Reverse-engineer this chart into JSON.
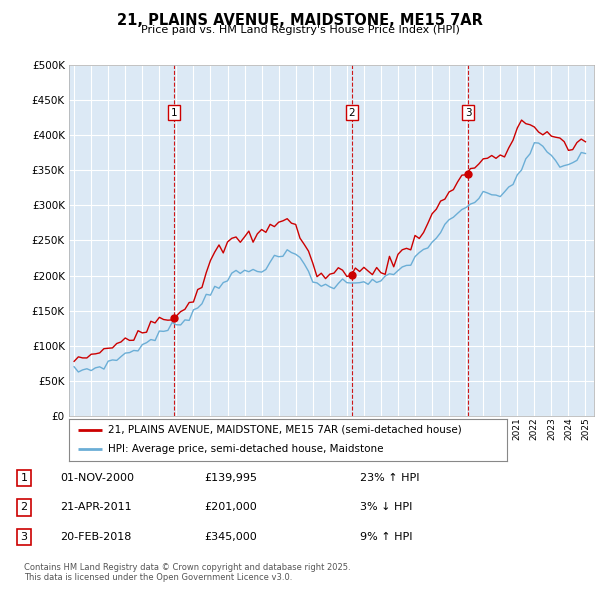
{
  "title": "21, PLAINS AVENUE, MAIDSTONE, ME15 7AR",
  "subtitle": "Price paid vs. HM Land Registry's House Price Index (HPI)",
  "legend_line1": "21, PLAINS AVENUE, MAIDSTONE, ME15 7AR (semi-detached house)",
  "legend_line2": "HPI: Average price, semi-detached house, Maidstone",
  "footer": "Contains HM Land Registry data © Crown copyright and database right 2025.\nThis data is licensed under the Open Government Licence v3.0.",
  "sales": [
    {
      "num": "1",
      "date": "01-NOV-2000",
      "price": 139995,
      "pct_str": "23% ↑ HPI",
      "year": 2000.84
    },
    {
      "num": "2",
      "date": "21-APR-2011",
      "price": 201000,
      "pct_str": "3% ↓ HPI",
      "year": 2011.3
    },
    {
      "num": "3",
      "date": "20-FEB-2018",
      "price": 345000,
      "pct_str": "9% ↑ HPI",
      "year": 2018.13
    }
  ],
  "hpi_color": "#6baed6",
  "price_color": "#cc0000",
  "plot_bg": "#dce9f5",
  "ylim": [
    0,
    500000
  ],
  "xlim_start": 1994.7,
  "xlim_end": 2025.5,
  "hpi_years": [
    1995.0,
    1995.25,
    1995.5,
    1995.75,
    1996.0,
    1996.25,
    1996.5,
    1996.75,
    1997.0,
    1997.25,
    1997.5,
    1997.75,
    1998.0,
    1998.25,
    1998.5,
    1998.75,
    1999.0,
    1999.25,
    1999.5,
    1999.75,
    2000.0,
    2000.25,
    2000.5,
    2000.75,
    2001.0,
    2001.25,
    2001.5,
    2001.75,
    2002.0,
    2002.25,
    2002.5,
    2002.75,
    2003.0,
    2003.25,
    2003.5,
    2003.75,
    2004.0,
    2004.25,
    2004.5,
    2004.75,
    2005.0,
    2005.25,
    2005.5,
    2005.75,
    2006.0,
    2006.25,
    2006.5,
    2006.75,
    2007.0,
    2007.25,
    2007.5,
    2007.75,
    2008.0,
    2008.25,
    2008.5,
    2008.75,
    2009.0,
    2009.25,
    2009.5,
    2009.75,
    2010.0,
    2010.25,
    2010.5,
    2010.75,
    2011.0,
    2011.25,
    2011.5,
    2011.75,
    2012.0,
    2012.25,
    2012.5,
    2012.75,
    2013.0,
    2013.25,
    2013.5,
    2013.75,
    2014.0,
    2014.25,
    2014.5,
    2014.75,
    2015.0,
    2015.25,
    2015.5,
    2015.75,
    2016.0,
    2016.25,
    2016.5,
    2016.75,
    2017.0,
    2017.25,
    2017.5,
    2017.75,
    2018.0,
    2018.25,
    2018.5,
    2018.75,
    2019.0,
    2019.25,
    2019.5,
    2019.75,
    2020.0,
    2020.25,
    2020.5,
    2020.75,
    2021.0,
    2021.25,
    2021.5,
    2021.75,
    2022.0,
    2022.25,
    2022.5,
    2022.75,
    2023.0,
    2023.25,
    2023.5,
    2023.75,
    2024.0,
    2024.25,
    2024.5,
    2024.75,
    2025.0
  ],
  "hpi_values": [
    65000,
    64000,
    65500,
    66000,
    67000,
    68500,
    70000,
    72000,
    75000,
    78000,
    81000,
    85000,
    88000,
    91000,
    94000,
    97000,
    100000,
    104000,
    108000,
    112000,
    116000,
    120000,
    123000,
    127000,
    130000,
    134000,
    138000,
    143000,
    148000,
    155000,
    162000,
    170000,
    177000,
    183000,
    188000,
    192000,
    196000,
    199000,
    202000,
    204000,
    205000,
    206000,
    207000,
    208000,
    210000,
    214000,
    218000,
    222000,
    226000,
    229000,
    231000,
    232000,
    230000,
    225000,
    217000,
    207000,
    195000,
    188000,
    185000,
    184000,
    185000,
    187000,
    189000,
    190000,
    191000,
    192000,
    193000,
    193000,
    192000,
    191000,
    190000,
    191000,
    192000,
    195000,
    198000,
    202000,
    206000,
    210000,
    215000,
    220000,
    225000,
    230000,
    236000,
    242000,
    248000,
    255000,
    262000,
    269000,
    275000,
    281000,
    287000,
    292000,
    297000,
    302000,
    306000,
    310000,
    313000,
    315000,
    316000,
    316000,
    315000,
    318000,
    325000,
    334000,
    342000,
    352000,
    362000,
    373000,
    384000,
    390000,
    385000,
    375000,
    368000,
    362000,
    358000,
    356000,
    358000,
    362000,
    366000,
    370000,
    375000
  ],
  "red_years": [
    1995.0,
    1995.25,
    1995.5,
    1995.75,
    1996.0,
    1996.25,
    1996.5,
    1996.75,
    1997.0,
    1997.25,
    1997.5,
    1997.75,
    1998.0,
    1998.25,
    1998.5,
    1998.75,
    1999.0,
    1999.25,
    1999.5,
    1999.75,
    2000.0,
    2000.25,
    2000.5,
    2000.75,
    2001.0,
    2001.25,
    2001.5,
    2001.75,
    2002.0,
    2002.25,
    2002.5,
    2002.75,
    2003.0,
    2003.25,
    2003.5,
    2003.75,
    2004.0,
    2004.25,
    2004.5,
    2004.75,
    2005.0,
    2005.25,
    2005.5,
    2005.75,
    2006.0,
    2006.25,
    2006.5,
    2006.75,
    2007.0,
    2007.25,
    2007.5,
    2007.75,
    2008.0,
    2008.25,
    2008.5,
    2008.75,
    2009.0,
    2009.25,
    2009.5,
    2009.75,
    2010.0,
    2010.25,
    2010.5,
    2010.75,
    2011.0,
    2011.25,
    2011.5,
    2011.75,
    2012.0,
    2012.25,
    2012.5,
    2012.75,
    2013.0,
    2013.25,
    2013.5,
    2013.75,
    2014.0,
    2014.25,
    2014.5,
    2014.75,
    2015.0,
    2015.25,
    2015.5,
    2015.75,
    2016.0,
    2016.25,
    2016.5,
    2016.75,
    2017.0,
    2017.25,
    2017.5,
    2017.75,
    2018.0,
    2018.25,
    2018.5,
    2018.75,
    2019.0,
    2019.25,
    2019.5,
    2019.75,
    2020.0,
    2020.25,
    2020.5,
    2020.75,
    2021.0,
    2021.25,
    2021.5,
    2021.75,
    2022.0,
    2022.25,
    2022.5,
    2022.75,
    2023.0,
    2023.25,
    2023.5,
    2023.75,
    2024.0,
    2024.25,
    2024.5,
    2024.75,
    2025.0
  ],
  "red_values": [
    82000,
    81000,
    82000,
    83000,
    84000,
    86000,
    88000,
    91000,
    95000,
    100000,
    105000,
    108000,
    110000,
    113000,
    117000,
    121000,
    125000,
    129000,
    133000,
    136000,
    138000,
    140000,
    142000,
    143000,
    145000,
    150000,
    156000,
    163000,
    170000,
    180000,
    192000,
    205000,
    218000,
    228000,
    235000,
    240000,
    244000,
    247000,
    250000,
    252000,
    253000,
    254000,
    255000,
    257000,
    260000,
    265000,
    270000,
    275000,
    280000,
    282000,
    280000,
    275000,
    268000,
    258000,
    245000,
    230000,
    215000,
    205000,
    200000,
    198000,
    200000,
    202000,
    205000,
    207000,
    208000,
    207000,
    207000,
    207000,
    206000,
    205000,
    205000,
    206000,
    208000,
    212000,
    217000,
    222000,
    227000,
    232000,
    238000,
    245000,
    252000,
    260000,
    268000,
    276000,
    284000,
    293000,
    302000,
    311000,
    320000,
    328000,
    335000,
    340000,
    345000,
    350000,
    356000,
    362000,
    366000,
    368000,
    368000,
    366000,
    363000,
    370000,
    383000,
    398000,
    410000,
    418000,
    420000,
    415000,
    408000,
    405000,
    403000,
    400000,
    398000,
    395000,
    390000,
    385000,
    380000,
    382000,
    388000,
    395000,
    400000
  ]
}
